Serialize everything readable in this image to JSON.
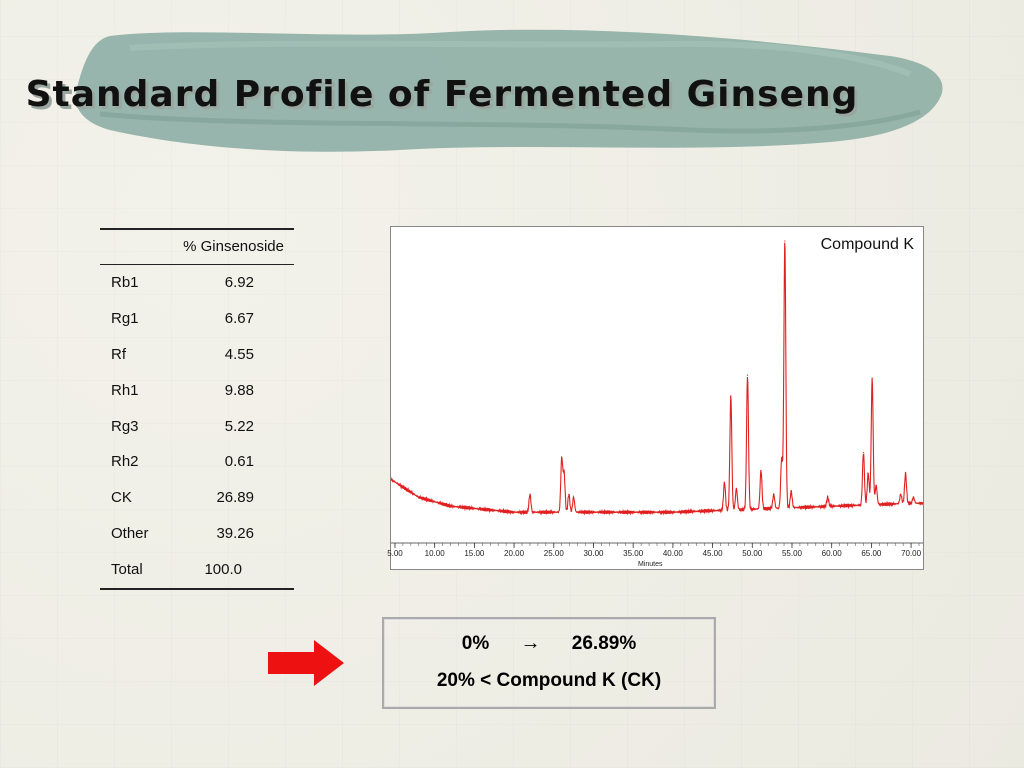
{
  "slide": {
    "title": "Standard Profile of Fermented Ginseng"
  },
  "table": {
    "header": "% Ginsenoside",
    "rows": [
      {
        "name": "Rb1",
        "value": "6.92"
      },
      {
        "name": "Rg1",
        "value": "6.67"
      },
      {
        "name": "Rf",
        "value": "4.55"
      },
      {
        "name": "Rh1",
        "value": "9.88"
      },
      {
        "name": "Rg3",
        "value": "5.22"
      },
      {
        "name": "Rh2",
        "value": "0.61"
      },
      {
        "name": "CK",
        "value": "26.89"
      },
      {
        "name": "Other",
        "value": "39.26"
      },
      {
        "name": "Total",
        "value": "100.0"
      }
    ]
  },
  "chart_data": {
    "type": "line",
    "annotation": "Compound K",
    "xlabel": "Minutes",
    "xlim": [
      4.5,
      71.5
    ],
    "x_ticks": [
      "5.00",
      "10.00",
      "15.00",
      "20.00",
      "25.00",
      "30.00",
      "35.00",
      "40.00",
      "45.00",
      "50.00",
      "55.00",
      "60.00",
      "65.00",
      "70.00"
    ],
    "ylim": [
      0,
      100
    ],
    "baseline": [
      [
        4.5,
        20
      ],
      [
        8,
        14
      ],
      [
        12,
        11
      ],
      [
        20,
        9
      ],
      [
        30,
        9
      ],
      [
        40,
        9
      ],
      [
        50,
        10
      ],
      [
        60,
        11
      ],
      [
        70,
        12
      ],
      [
        71.5,
        12
      ]
    ],
    "peaks": [
      {
        "x": 22.0,
        "y": 15
      },
      {
        "x": 26.0,
        "y": 27
      },
      {
        "x": 26.3,
        "y": 22
      },
      {
        "x": 26.9,
        "y": 15
      },
      {
        "x": 27.5,
        "y": 14
      },
      {
        "x": 46.5,
        "y": 19
      },
      {
        "x": 47.3,
        "y": 48
      },
      {
        "x": 48.0,
        "y": 17
      },
      {
        "x": 49.4,
        "y": 55
      },
      {
        "x": 51.1,
        "y": 23
      },
      {
        "x": 52.7,
        "y": 15
      },
      {
        "x": 53.7,
        "y": 27
      },
      {
        "x": 54.1,
        "y": 100
      },
      {
        "x": 54.9,
        "y": 16
      },
      {
        "x": 59.5,
        "y": 14
      },
      {
        "x": 64.0,
        "y": 29
      },
      {
        "x": 64.6,
        "y": 22
      },
      {
        "x": 65.1,
        "y": 54
      },
      {
        "x": 65.6,
        "y": 18
      },
      {
        "x": 68.7,
        "y": 15
      },
      {
        "x": 69.3,
        "y": 22
      },
      {
        "x": 70.3,
        "y": 14
      }
    ],
    "line_color": "#e02020"
  },
  "result": {
    "from": "0%",
    "to": "26.89%",
    "conclusion": "20% < Compound K (CK)"
  },
  "colors": {
    "arrow": "#ee1111",
    "title_band": "#8fb0a6"
  }
}
